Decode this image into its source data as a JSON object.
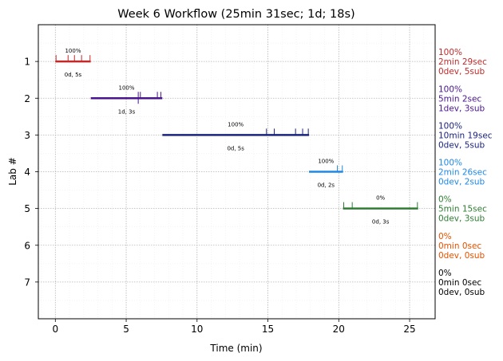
{
  "chart_data": {
    "type": "gantt",
    "title": "Week 6 Workflow (25min 31sec; 1d; 18s)",
    "xlabel": "Time (min)",
    "ylabel": "Lab #",
    "xlim": [
      -1.2,
      26.8
    ],
    "ylim": [
      8,
      0
    ],
    "xticks": [
      0,
      5,
      10,
      15,
      20,
      25
    ],
    "xtick_labels": [
      "0",
      "5",
      "10",
      "15",
      "20",
      "25"
    ],
    "yticks": [
      1,
      2,
      3,
      4,
      5,
      6,
      7
    ],
    "ytick_labels": [
      "1",
      "2",
      "3",
      "4",
      "5",
      "6",
      "7"
    ],
    "grid": true,
    "labs": [
      {
        "lab": 1,
        "start": 0.0,
        "end": 2.5,
        "color": "#c62828",
        "pct": "100%",
        "devsub": "0d, 5s",
        "commits": [
          {
            "x": 0.05,
            "dev": false
          },
          {
            "x": 0.9,
            "dev": false
          },
          {
            "x": 1.35,
            "dev": false
          },
          {
            "x": 1.85,
            "dev": false
          },
          {
            "x": 2.45,
            "dev": false
          }
        ],
        "side": [
          "100%",
          "2min 29sec",
          "0dev, 5sub"
        ]
      },
      {
        "lab": 2,
        "start": 2.5,
        "end": 7.55,
        "color": "#4a148c",
        "pct": "100%",
        "devsub": "1d, 3s",
        "commits": [
          {
            "x": 5.85,
            "dev": true
          },
          {
            "x": 6.0,
            "dev": false
          },
          {
            "x": 7.2,
            "dev": false
          },
          {
            "x": 7.45,
            "dev": false
          }
        ],
        "side": [
          "100%",
          "5min 2sec",
          "1dev, 3sub"
        ]
      },
      {
        "lab": 3,
        "start": 7.55,
        "end": 17.9,
        "color": "#1a237e",
        "pct": "100%",
        "devsub": "0d, 5s",
        "commits": [
          {
            "x": 14.9,
            "dev": false
          },
          {
            "x": 15.45,
            "dev": false
          },
          {
            "x": 16.95,
            "dev": false
          },
          {
            "x": 17.45,
            "dev": false
          },
          {
            "x": 17.85,
            "dev": false
          }
        ],
        "side": [
          "100%",
          "10min 19sec",
          "0dev, 5sub"
        ]
      },
      {
        "lab": 4,
        "start": 17.9,
        "end": 20.3,
        "color": "#1e88e5",
        "pct": "100%",
        "devsub": "0d, 2s",
        "commits": [
          {
            "x": 19.9,
            "dev": false
          },
          {
            "x": 20.25,
            "dev": false
          }
        ],
        "side": [
          "100%",
          "2min 26sec",
          "0dev, 2sub"
        ]
      },
      {
        "lab": 5,
        "start": 20.3,
        "end": 25.6,
        "color": "#2e7d32",
        "pct": "0%",
        "devsub": "0d, 3s",
        "commits": [
          {
            "x": 20.35,
            "dev": false
          },
          {
            "x": 20.95,
            "dev": false
          },
          {
            "x": 25.55,
            "dev": false
          }
        ],
        "side": [
          "0%",
          "5min 15sec",
          "0dev, 3sub"
        ]
      },
      {
        "lab": 6,
        "start": null,
        "end": null,
        "color": "#e65100",
        "pct": "",
        "devsub": "",
        "commits": [],
        "side": [
          "0%",
          "0min 0sec",
          "0dev, 0sub"
        ]
      },
      {
        "lab": 7,
        "start": null,
        "end": null,
        "color": "#000000",
        "pct": "",
        "devsub": "",
        "commits": [],
        "side": [
          "0%",
          "0min 0sec",
          "0dev, 0sub"
        ]
      }
    ]
  }
}
